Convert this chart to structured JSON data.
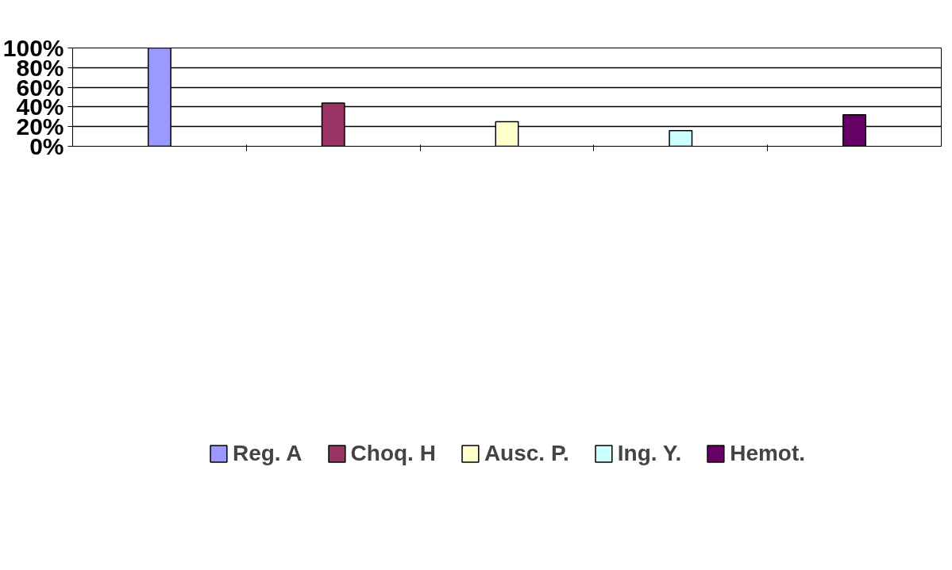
{
  "chart_data": {
    "type": "bar",
    "categories": [
      null,
      null,
      null,
      null,
      null
    ],
    "series": [
      {
        "name": "Reg. A",
        "color": "#9999ff",
        "values": [
          100,
          null,
          null,
          null,
          null
        ]
      },
      {
        "name": "Choq. H",
        "color": "#993366",
        "values": [
          null,
          44,
          null,
          null,
          null
        ]
      },
      {
        "name": "Ausc. P.",
        "color": "#ffffcc",
        "values": [
          null,
          null,
          25,
          null,
          null
        ]
      },
      {
        "name": "Ing. Y.",
        "color": "#ccffff",
        "values": [
          null,
          null,
          null,
          16,
          null
        ]
      },
      {
        "name": "Hemot.",
        "color": "#660066",
        "values": [
          null,
          null,
          null,
          null,
          32
        ]
      }
    ],
    "ylim": [
      0,
      100
    ],
    "yticks": [
      {
        "value": 0,
        "label": "0%"
      },
      {
        "value": 20,
        "label": "20%"
      },
      {
        "value": 40,
        "label": "40%"
      },
      {
        "value": 60,
        "label": "60%"
      },
      {
        "value": 80,
        "label": "80%"
      },
      {
        "value": 100,
        "label": "100%"
      }
    ],
    "grid": "y",
    "legend": "bottom",
    "tick_labels": "y"
  }
}
